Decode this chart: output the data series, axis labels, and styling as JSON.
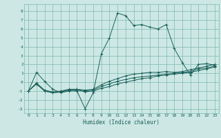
{
  "xlabel": "Humidex (Indice chaleur)",
  "bg_color": "#cde8e4",
  "grid_color": "#7ab8b0",
  "line_color": "#1a5f5a",
  "xlim": [
    -0.5,
    23.5
  ],
  "ylim": [
    -3.5,
    8.8
  ],
  "xticks": [
    0,
    1,
    2,
    3,
    4,
    5,
    6,
    7,
    8,
    9,
    10,
    11,
    12,
    13,
    14,
    15,
    16,
    17,
    18,
    19,
    20,
    21,
    22,
    23
  ],
  "yticks": [
    -3,
    -2,
    -1,
    0,
    1,
    2,
    3,
    4,
    5,
    6,
    7,
    8
  ],
  "series": [
    [
      -1.0,
      1.1,
      0.1,
      -0.8,
      -1.2,
      -1.0,
      -1.0,
      -3.0,
      -1.2,
      3.2,
      5.0,
      7.8,
      7.5,
      6.4,
      6.5,
      6.2,
      6.0,
      6.5,
      3.8,
      2.2,
      0.8,
      2.0,
      2.1,
      1.9
    ],
    [
      -1.0,
      -0.2,
      -1.0,
      -1.2,
      -1.1,
      -0.9,
      -0.9,
      -1.1,
      -1.0,
      -0.7,
      -0.5,
      -0.2,
      0.0,
      0.2,
      0.4,
      0.5,
      0.7,
      0.8,
      0.9,
      1.0,
      1.1,
      1.3,
      1.5,
      1.7
    ],
    [
      -1.0,
      -0.2,
      -1.0,
      -1.2,
      -1.1,
      -0.9,
      -0.8,
      -1.0,
      -0.9,
      -0.5,
      -0.2,
      0.1,
      0.3,
      0.5,
      0.6,
      0.7,
      0.8,
      0.9,
      1.0,
      1.1,
      1.2,
      1.5,
      1.6,
      1.8
    ],
    [
      -1.0,
      -0.1,
      -0.9,
      -1.1,
      -1.0,
      -0.8,
      -0.8,
      -0.9,
      -0.8,
      -0.3,
      0.1,
      0.4,
      0.7,
      0.9,
      1.0,
      1.1,
      1.1,
      1.2,
      1.1,
      1.2,
      1.4,
      1.6,
      1.8,
      2.0
    ]
  ]
}
